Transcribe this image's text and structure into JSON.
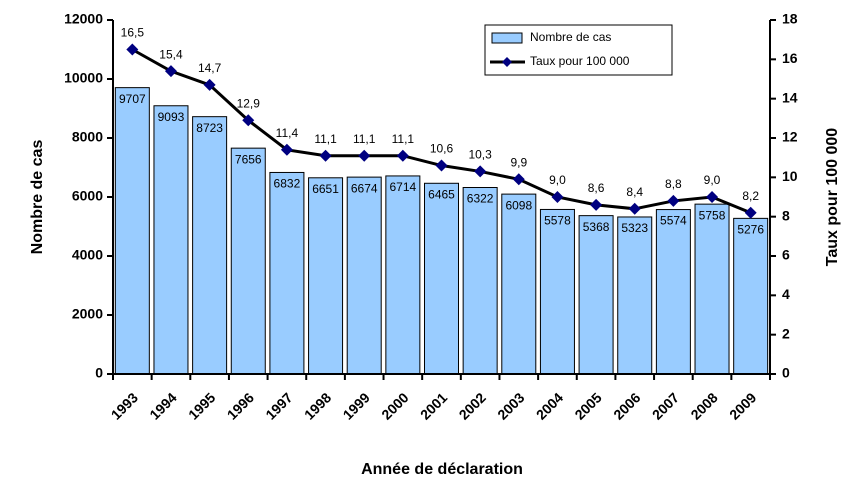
{
  "chart_data": {
    "type": "combo",
    "categories": [
      "1993",
      "1994",
      "1995",
      "1996",
      "1997",
      "1998",
      "1999",
      "2000",
      "2001",
      "2002",
      "2003",
      "2004",
      "2005",
      "2006",
      "2007",
      "2008",
      "2009"
    ],
    "series": [
      {
        "name": "Nombre de cas",
        "type": "bar",
        "color": "#99ccff",
        "values": [
          9707,
          9093,
          8723,
          7656,
          6832,
          6651,
          6674,
          6714,
          6465,
          6322,
          6098,
          5578,
          5368,
          5323,
          5574,
          5758,
          5276
        ]
      },
      {
        "name": "Taux pour 100 000",
        "type": "line",
        "axis": "y2",
        "color": "#000000",
        "marker_color": "#000080",
        "values": [
          16.5,
          15.4,
          14.7,
          12.9,
          11.4,
          11.1,
          11.1,
          11.1,
          10.6,
          10.3,
          9.9,
          9.0,
          8.6,
          8.4,
          8.8,
          9.0,
          8.2
        ],
        "value_labels": [
          "16,5",
          "15,4",
          "14,7",
          "12,9",
          "11,4",
          "11,1",
          "11,1",
          "11,1",
          "10,6",
          "10,3",
          "9,9",
          "9,0",
          "8,6",
          "8,4",
          "8,8",
          "9,0",
          "8,2"
        ]
      }
    ],
    "ylabel": "Nombre de cas",
    "y2label": "Taux pour 100 000",
    "xlabel": "Année de déclaration",
    "ylim": [
      0,
      12000
    ],
    "yticks": [
      0,
      2000,
      4000,
      6000,
      8000,
      10000,
      12000
    ],
    "y2lim": [
      0,
      18
    ],
    "y2ticks": [
      0,
      2,
      4,
      6,
      8,
      10,
      12,
      14,
      16,
      18
    ],
    "legend": "top-right",
    "grid": false
  }
}
